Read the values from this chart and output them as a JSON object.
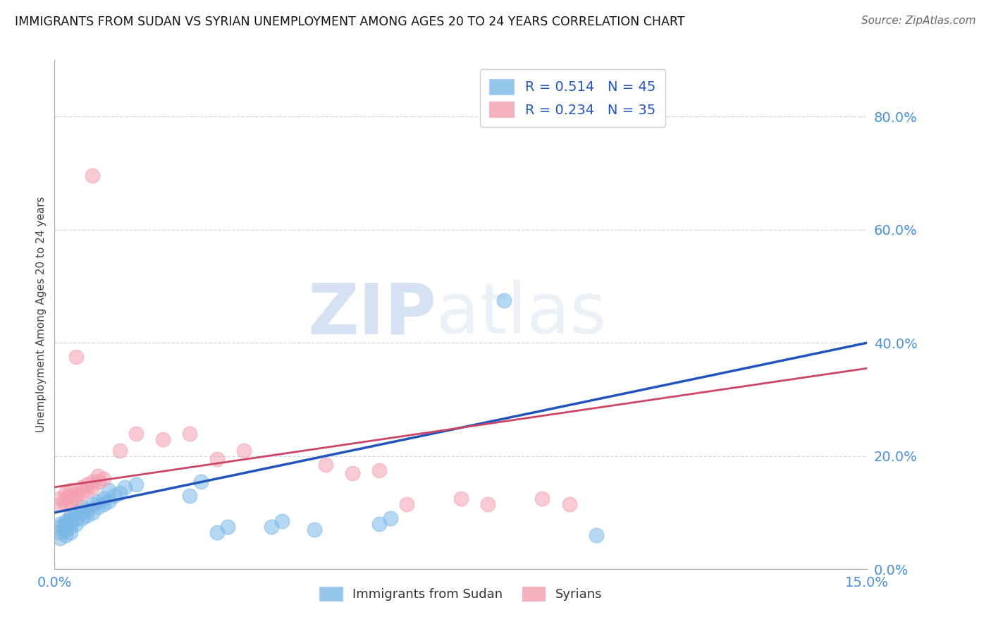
{
  "title": "IMMIGRANTS FROM SUDAN VS SYRIAN UNEMPLOYMENT AMONG AGES 20 TO 24 YEARS CORRELATION CHART",
  "source": "Source: ZipAtlas.com",
  "ylabel": "Unemployment Among Ages 20 to 24 years",
  "xlim": [
    0.0,
    0.15
  ],
  "ylim": [
    0.0,
    0.9
  ],
  "yticks": [
    0.0,
    0.2,
    0.4,
    0.6,
    0.8
  ],
  "xticks": [
    0.0,
    0.15
  ],
  "blue_color": "#7ab8e8",
  "pink_color": "#f4a0b0",
  "trend_blue": "#2255bb",
  "trend_pink": "#cc4466",
  "watermark_zip": "ZIP",
  "watermark_atlas": "atlas",
  "watermark_color": "#d0ddf0",
  "legend_label_blue": "R = 0.514   N = 45",
  "legend_label_pink": "R = 0.234   N = 35",
  "legend_bottom_blue": "Immigrants from Sudan",
  "legend_bottom_pink": "Syrians",
  "blue_trend_x": [
    0.0,
    0.15
  ],
  "blue_trend_y": [
    0.1,
    0.4
  ],
  "pink_trend_x": [
    0.0,
    0.15
  ],
  "pink_trend_y": [
    0.145,
    0.355
  ],
  "blue_scatter": [
    [
      0.001,
      0.055
    ],
    [
      0.001,
      0.065
    ],
    [
      0.001,
      0.075
    ],
    [
      0.001,
      0.08
    ],
    [
      0.002,
      0.06
    ],
    [
      0.002,
      0.07
    ],
    [
      0.002,
      0.075
    ],
    [
      0.002,
      0.08
    ],
    [
      0.002,
      0.085
    ],
    [
      0.003,
      0.065
    ],
    [
      0.003,
      0.075
    ],
    [
      0.003,
      0.085
    ],
    [
      0.003,
      0.09
    ],
    [
      0.003,
      0.095
    ],
    [
      0.004,
      0.08
    ],
    [
      0.004,
      0.09
    ],
    [
      0.004,
      0.1
    ],
    [
      0.005,
      0.09
    ],
    [
      0.005,
      0.1
    ],
    [
      0.005,
      0.11
    ],
    [
      0.006,
      0.095
    ],
    [
      0.006,
      0.105
    ],
    [
      0.007,
      0.1
    ],
    [
      0.007,
      0.115
    ],
    [
      0.008,
      0.11
    ],
    [
      0.008,
      0.12
    ],
    [
      0.009,
      0.115
    ],
    [
      0.009,
      0.125
    ],
    [
      0.01,
      0.12
    ],
    [
      0.01,
      0.14
    ],
    [
      0.011,
      0.13
    ],
    [
      0.012,
      0.135
    ],
    [
      0.013,
      0.145
    ],
    [
      0.015,
      0.15
    ],
    [
      0.025,
      0.13
    ],
    [
      0.027,
      0.155
    ],
    [
      0.03,
      0.065
    ],
    [
      0.032,
      0.075
    ],
    [
      0.04,
      0.075
    ],
    [
      0.042,
      0.085
    ],
    [
      0.048,
      0.07
    ],
    [
      0.06,
      0.08
    ],
    [
      0.062,
      0.09
    ],
    [
      0.083,
      0.475
    ],
    [
      0.1,
      0.06
    ]
  ],
  "pink_scatter": [
    [
      0.001,
      0.115
    ],
    [
      0.001,
      0.125
    ],
    [
      0.002,
      0.115
    ],
    [
      0.002,
      0.125
    ],
    [
      0.002,
      0.135
    ],
    [
      0.003,
      0.12
    ],
    [
      0.003,
      0.13
    ],
    [
      0.003,
      0.14
    ],
    [
      0.004,
      0.125
    ],
    [
      0.004,
      0.135
    ],
    [
      0.005,
      0.135
    ],
    [
      0.005,
      0.145
    ],
    [
      0.006,
      0.14
    ],
    [
      0.006,
      0.15
    ],
    [
      0.007,
      0.145
    ],
    [
      0.007,
      0.155
    ],
    [
      0.008,
      0.155
    ],
    [
      0.008,
      0.165
    ],
    [
      0.009,
      0.16
    ],
    [
      0.012,
      0.21
    ],
    [
      0.015,
      0.24
    ],
    [
      0.02,
      0.23
    ],
    [
      0.025,
      0.24
    ],
    [
      0.03,
      0.195
    ],
    [
      0.035,
      0.21
    ],
    [
      0.05,
      0.185
    ],
    [
      0.055,
      0.17
    ],
    [
      0.06,
      0.175
    ],
    [
      0.065,
      0.115
    ],
    [
      0.075,
      0.125
    ],
    [
      0.08,
      0.115
    ],
    [
      0.09,
      0.125
    ],
    [
      0.095,
      0.115
    ],
    [
      0.004,
      0.375
    ],
    [
      0.007,
      0.695
    ]
  ]
}
